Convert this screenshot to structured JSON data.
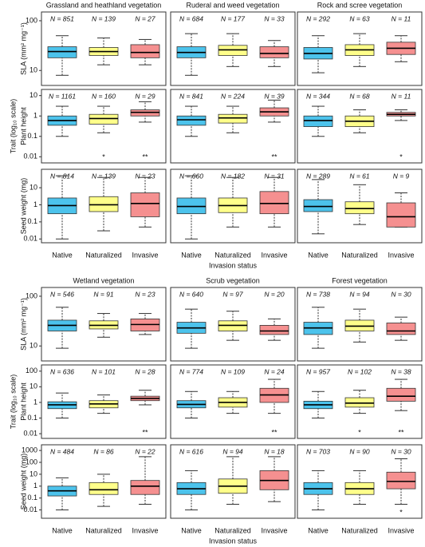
{
  "chart_data": [
    {
      "type": "box",
      "log": true,
      "categories": [
        "Native",
        "Naturalized",
        "Invasive"
      ],
      "colors": [
        "#4cc3ec",
        "#ffff8a",
        "#f59090"
      ],
      "xlabel": "Invasion status",
      "shared_ylabel": "Trait (log₁₀ scale)",
      "rows": [
        {
          "ylabel": "SLA (mm² mg⁻¹)",
          "ylim": [
            5,
            150
          ],
          "yticks": [
            10,
            100
          ]
        },
        {
          "ylabel": "Plant height",
          "ylim": [
            0.005,
            20
          ],
          "yticks": [
            0.01,
            0.1,
            1,
            10
          ]
        },
        {
          "ylabel": "Seed weight (mg)",
          "ylim": [
            0.006,
            120
          ],
          "yticks": [
            0.01,
            0.1,
            1,
            10
          ]
        }
      ],
      "panels": [
        {
          "title": "Grassland and heathland vegetation",
          "rows": [
            {
              "n": [
                "N = 851",
                "N = 139",
                "N = 27"
              ],
              "boxes": [
                [
                  8,
                  18,
                  24,
                  30,
                  50
                ],
                [
                  13,
                  20,
                  24,
                  29,
                  45
                ],
                [
                  13,
                  18,
                  23,
                  33,
                  42
                ]
              ],
              "stars": [
                null,
                null,
                null
              ]
            },
            {
              "n": [
                "N = 1161",
                "N = 160",
                "N = 29"
              ],
              "boxes": [
                [
                  0.1,
                  0.35,
                  0.6,
                  1,
                  3
                ],
                [
                  0.15,
                  0.4,
                  0.75,
                  1.2,
                  3
                ],
                [
                  0.5,
                  1,
                  1.5,
                  2,
                  5
                ]
              ],
              "stars": [
                null,
                "*",
                "**"
              ]
            },
            {
              "n": [
                "N = 814",
                "N = 139",
                "N = 23"
              ],
              "boxes": [
                [
                  0.01,
                  0.3,
                  0.9,
                  2.5,
                  50
                ],
                [
                  0.03,
                  0.4,
                  1,
                  3,
                  40
                ],
                [
                  0.05,
                  0.2,
                  1.2,
                  5,
                  40
                ]
              ],
              "stars": [
                null,
                null,
                null
              ]
            }
          ]
        },
        {
          "title": "Ruderal and weed vegetation",
          "rows": [
            {
              "n": [
                "N = 684",
                "N = 177",
                "N = 33"
              ],
              "boxes": [
                [
                  8,
                  18,
                  23,
                  30,
                  55
                ],
                [
                  12,
                  20,
                  26,
                  32,
                  55
                ],
                [
                  12,
                  18,
                  22,
                  30,
                  40
                ]
              ],
              "stars": [
                null,
                null,
                null
              ]
            },
            {
              "n": [
                "N = 841",
                "N = 224",
                "N = 39"
              ],
              "boxes": [
                [
                  0.1,
                  0.35,
                  0.65,
                  1,
                  3
                ],
                [
                  0.15,
                  0.45,
                  0.8,
                  1.2,
                  3
                ],
                [
                  0.5,
                  1,
                  1.6,
                  2.5,
                  6
                ]
              ],
              "stars": [
                null,
                null,
                "**"
              ]
            },
            {
              "n": [
                "N = 660",
                "N = 182",
                "N = 31"
              ],
              "boxes": [
                [
                  0.01,
                  0.3,
                  0.8,
                  2.5,
                  50
                ],
                [
                  0.05,
                  0.35,
                  0.9,
                  2.5,
                  40
                ],
                [
                  0.05,
                  0.3,
                  1.2,
                  6,
                  40
                ]
              ],
              "stars": [
                null,
                null,
                null
              ]
            }
          ]
        },
        {
          "title": "Rock and scree vegetation",
          "rows": [
            {
              "n": [
                "N = 292",
                "N = 63",
                "N = 11"
              ],
              "boxes": [
                [
                  9,
                  17,
                  22,
                  29,
                  50
                ],
                [
                  12,
                  20,
                  26,
                  33,
                  55
                ],
                [
                  15,
                  21,
                  28,
                  37,
                  50
                ]
              ],
              "stars": [
                null,
                null,
                null
              ]
            },
            {
              "n": [
                "N = 344",
                "N = 68",
                "N = 11"
              ],
              "boxes": [
                [
                  0.1,
                  0.3,
                  0.6,
                  1,
                  3
                ],
                [
                  0.15,
                  0.3,
                  0.55,
                  1,
                  2
                ],
                [
                  0.6,
                  1,
                  1.2,
                  1.5,
                  2
                ]
              ],
              "stars": [
                null,
                null,
                "*"
              ]
            },
            {
              "n": [
                "N = 289",
                "N = 61",
                "N = 9"
              ],
              "boxes": [
                [
                  0.02,
                  0.4,
                  0.8,
                  2,
                  30
                ],
                [
                  0.07,
                  0.3,
                  0.6,
                  1.5,
                  15
                ],
                [
                  0.05,
                  0.05,
                  0.2,
                  1.3,
                  5
                ]
              ],
              "stars": [
                null,
                null,
                null
              ]
            }
          ]
        }
      ]
    },
    {
      "type": "box",
      "log": true,
      "categories": [
        "Native",
        "Naturalized",
        "Invasive"
      ],
      "colors": [
        "#4cc3ec",
        "#ffff8a",
        "#f59090"
      ],
      "xlabel": "Invasion status",
      "shared_ylabel": "Trait (log₁₀ scale)",
      "rows": [
        {
          "ylabel": "SLA (mm² mg⁻¹)",
          "ylim": [
            5,
            150
          ],
          "yticks": [
            10,
            100
          ]
        },
        {
          "ylabel": "Plant height",
          "ylim": [
            0.005,
            250
          ],
          "yticks": [
            0.01,
            0.1,
            1,
            10,
            100
          ]
        },
        {
          "ylabel": "Seed weight (mg)",
          "ylim": [
            0.002,
            3000
          ],
          "yticks": [
            0.01,
            0.1,
            1,
            10,
            100,
            1000
          ]
        }
      ],
      "panels": [
        {
          "title": "Wetland vegetation",
          "rows": [
            {
              "n": [
                "N = 546",
                "N = 91",
                "N = 23"
              ],
              "boxes": [
                [
                  9,
                  20,
                  26,
                  33,
                  60
                ],
                [
                  15,
                  22,
                  26,
                  32,
                  45
                ],
                [
                  17,
                  20,
                  27,
                  35,
                  45
                ]
              ],
              "stars": [
                null,
                null,
                null
              ]
            },
            {
              "n": [
                "N = 636",
                "N = 101",
                "N = 28"
              ],
              "boxes": [
                [
                  0.1,
                  0.4,
                  0.7,
                  1.1,
                  4
                ],
                [
                  0.2,
                  0.45,
                  0.8,
                  1.3,
                  3
                ],
                [
                  0.7,
                  1.3,
                  1.8,
                  2.5,
                  6
                ]
              ],
              "stars": [
                null,
                null,
                "**"
              ]
            },
            {
              "n": [
                "N = 484",
                "N = 86",
                "N = 22"
              ],
              "boxes": [
                [
                  0.01,
                  0.15,
                  0.4,
                  1,
                  5
                ],
                [
                  0.02,
                  0.2,
                  0.5,
                  2,
                  10
                ],
                [
                  0.03,
                  0.2,
                  1,
                  3,
                  300
                ]
              ],
              "stars": [
                null,
                null,
                null
              ]
            }
          ]
        },
        {
          "title": "Scrub vegetation",
          "rows": [
            {
              "n": [
                "N = 640",
                "N = 97",
                "N = 20"
              ],
              "boxes": [
                [
                  9,
                  18,
                  23,
                  30,
                  55
                ],
                [
                  13,
                  20,
                  26,
                  32,
                  50
                ],
                [
                  13,
                  17,
                  20,
                  26,
                  35
                ]
              ],
              "stars": [
                null,
                null,
                null
              ]
            },
            {
              "n": [
                "N = 774",
                "N = 109",
                "N = 24"
              ],
              "boxes": [
                [
                  0.1,
                  0.45,
                  0.75,
                  1.3,
                  5
                ],
                [
                  0.2,
                  0.5,
                  1,
                  2,
                  5
                ],
                [
                  0.2,
                  1,
                  3,
                  8,
                  30
                ]
              ],
              "stars": [
                null,
                null,
                "**"
              ]
            },
            {
              "n": [
                "N = 616",
                "N = 94",
                "N = 18"
              ],
              "boxes": [
                [
                  0.01,
                  0.2,
                  0.6,
                  2,
                  20
                ],
                [
                  0.03,
                  0.25,
                  1,
                  4,
                  300
                ],
                [
                  0.05,
                  0.5,
                  3,
                  20,
                  300
                ]
              ],
              "stars": [
                null,
                null,
                null
              ]
            }
          ]
        },
        {
          "title": "Forest vegetation",
          "rows": [
            {
              "n": [
                "N = 738",
                "N = 94",
                "N = 30"
              ],
              "boxes": [
                [
                  9,
                  17,
                  23,
                  30,
                  60
                ],
                [
                  12,
                  20,
                  25,
                  33,
                  55
                ],
                [
                  13,
                  17,
                  20,
                  29,
                  38
                ]
              ],
              "stars": [
                null,
                null,
                null
              ]
            },
            {
              "n": [
                "N = 957",
                "N = 102",
                "N = 38"
              ],
              "boxes": [
                [
                  0.1,
                  0.4,
                  0.7,
                  1.2,
                  5
                ],
                [
                  0.2,
                  0.5,
                  0.9,
                  2,
                  6
                ],
                [
                  0.3,
                  1.2,
                  2.5,
                  8,
                  30
                ]
              ],
              "stars": [
                null,
                "*",
                "**"
              ]
            },
            {
              "n": [
                "N = 703",
                "N = 90",
                "N = 30"
              ],
              "boxes": [
                [
                  0.01,
                  0.2,
                  0.6,
                  2,
                  20
                ],
                [
                  0.03,
                  0.2,
                  0.6,
                  2,
                  20
                ],
                [
                  0.03,
                  0.6,
                  2.5,
                  15,
                  200
                ]
              ],
              "stars": [
                null,
                null,
                "*"
              ]
            }
          ]
        }
      ]
    }
  ]
}
